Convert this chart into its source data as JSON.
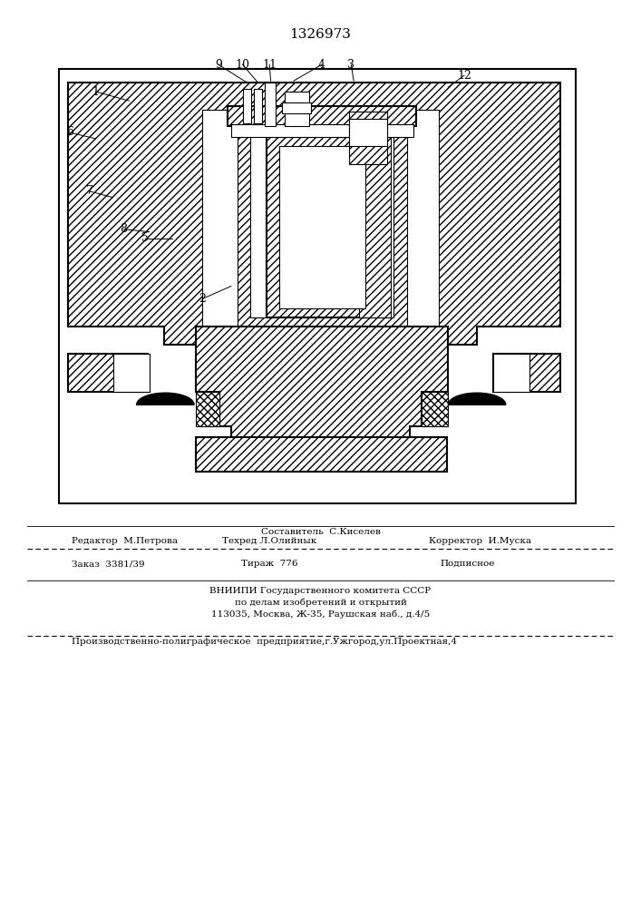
{
  "patent_number": "1326973",
  "background_color": "#ffffff",
  "line_color": "#000000",
  "fig_width": 7.07,
  "fig_height": 10.0,
  "footer": {
    "sostavitel": "Составитель  С.Киселев",
    "redaktor": "Редактор  М.Петрова",
    "tekhred": "Техред Л.Олийнык",
    "korrektor": "Корректор  И.Муска",
    "zakaz": "Заказ  3381/39",
    "tirazh": "Тираж  776",
    "podpisnoe": "Подписное",
    "vniiipi_line1": "ВНИИПИ Государственного комитета СССР",
    "vniiipi_line2": "по делам изобретений и открытий",
    "vniiipi_line3": "113035, Москва, Ж-35, Раушская наб., д.4/5",
    "print_company": "Производственно-полиграфическое  предприятие,г.Ужгород,ул.Проектная,4"
  }
}
